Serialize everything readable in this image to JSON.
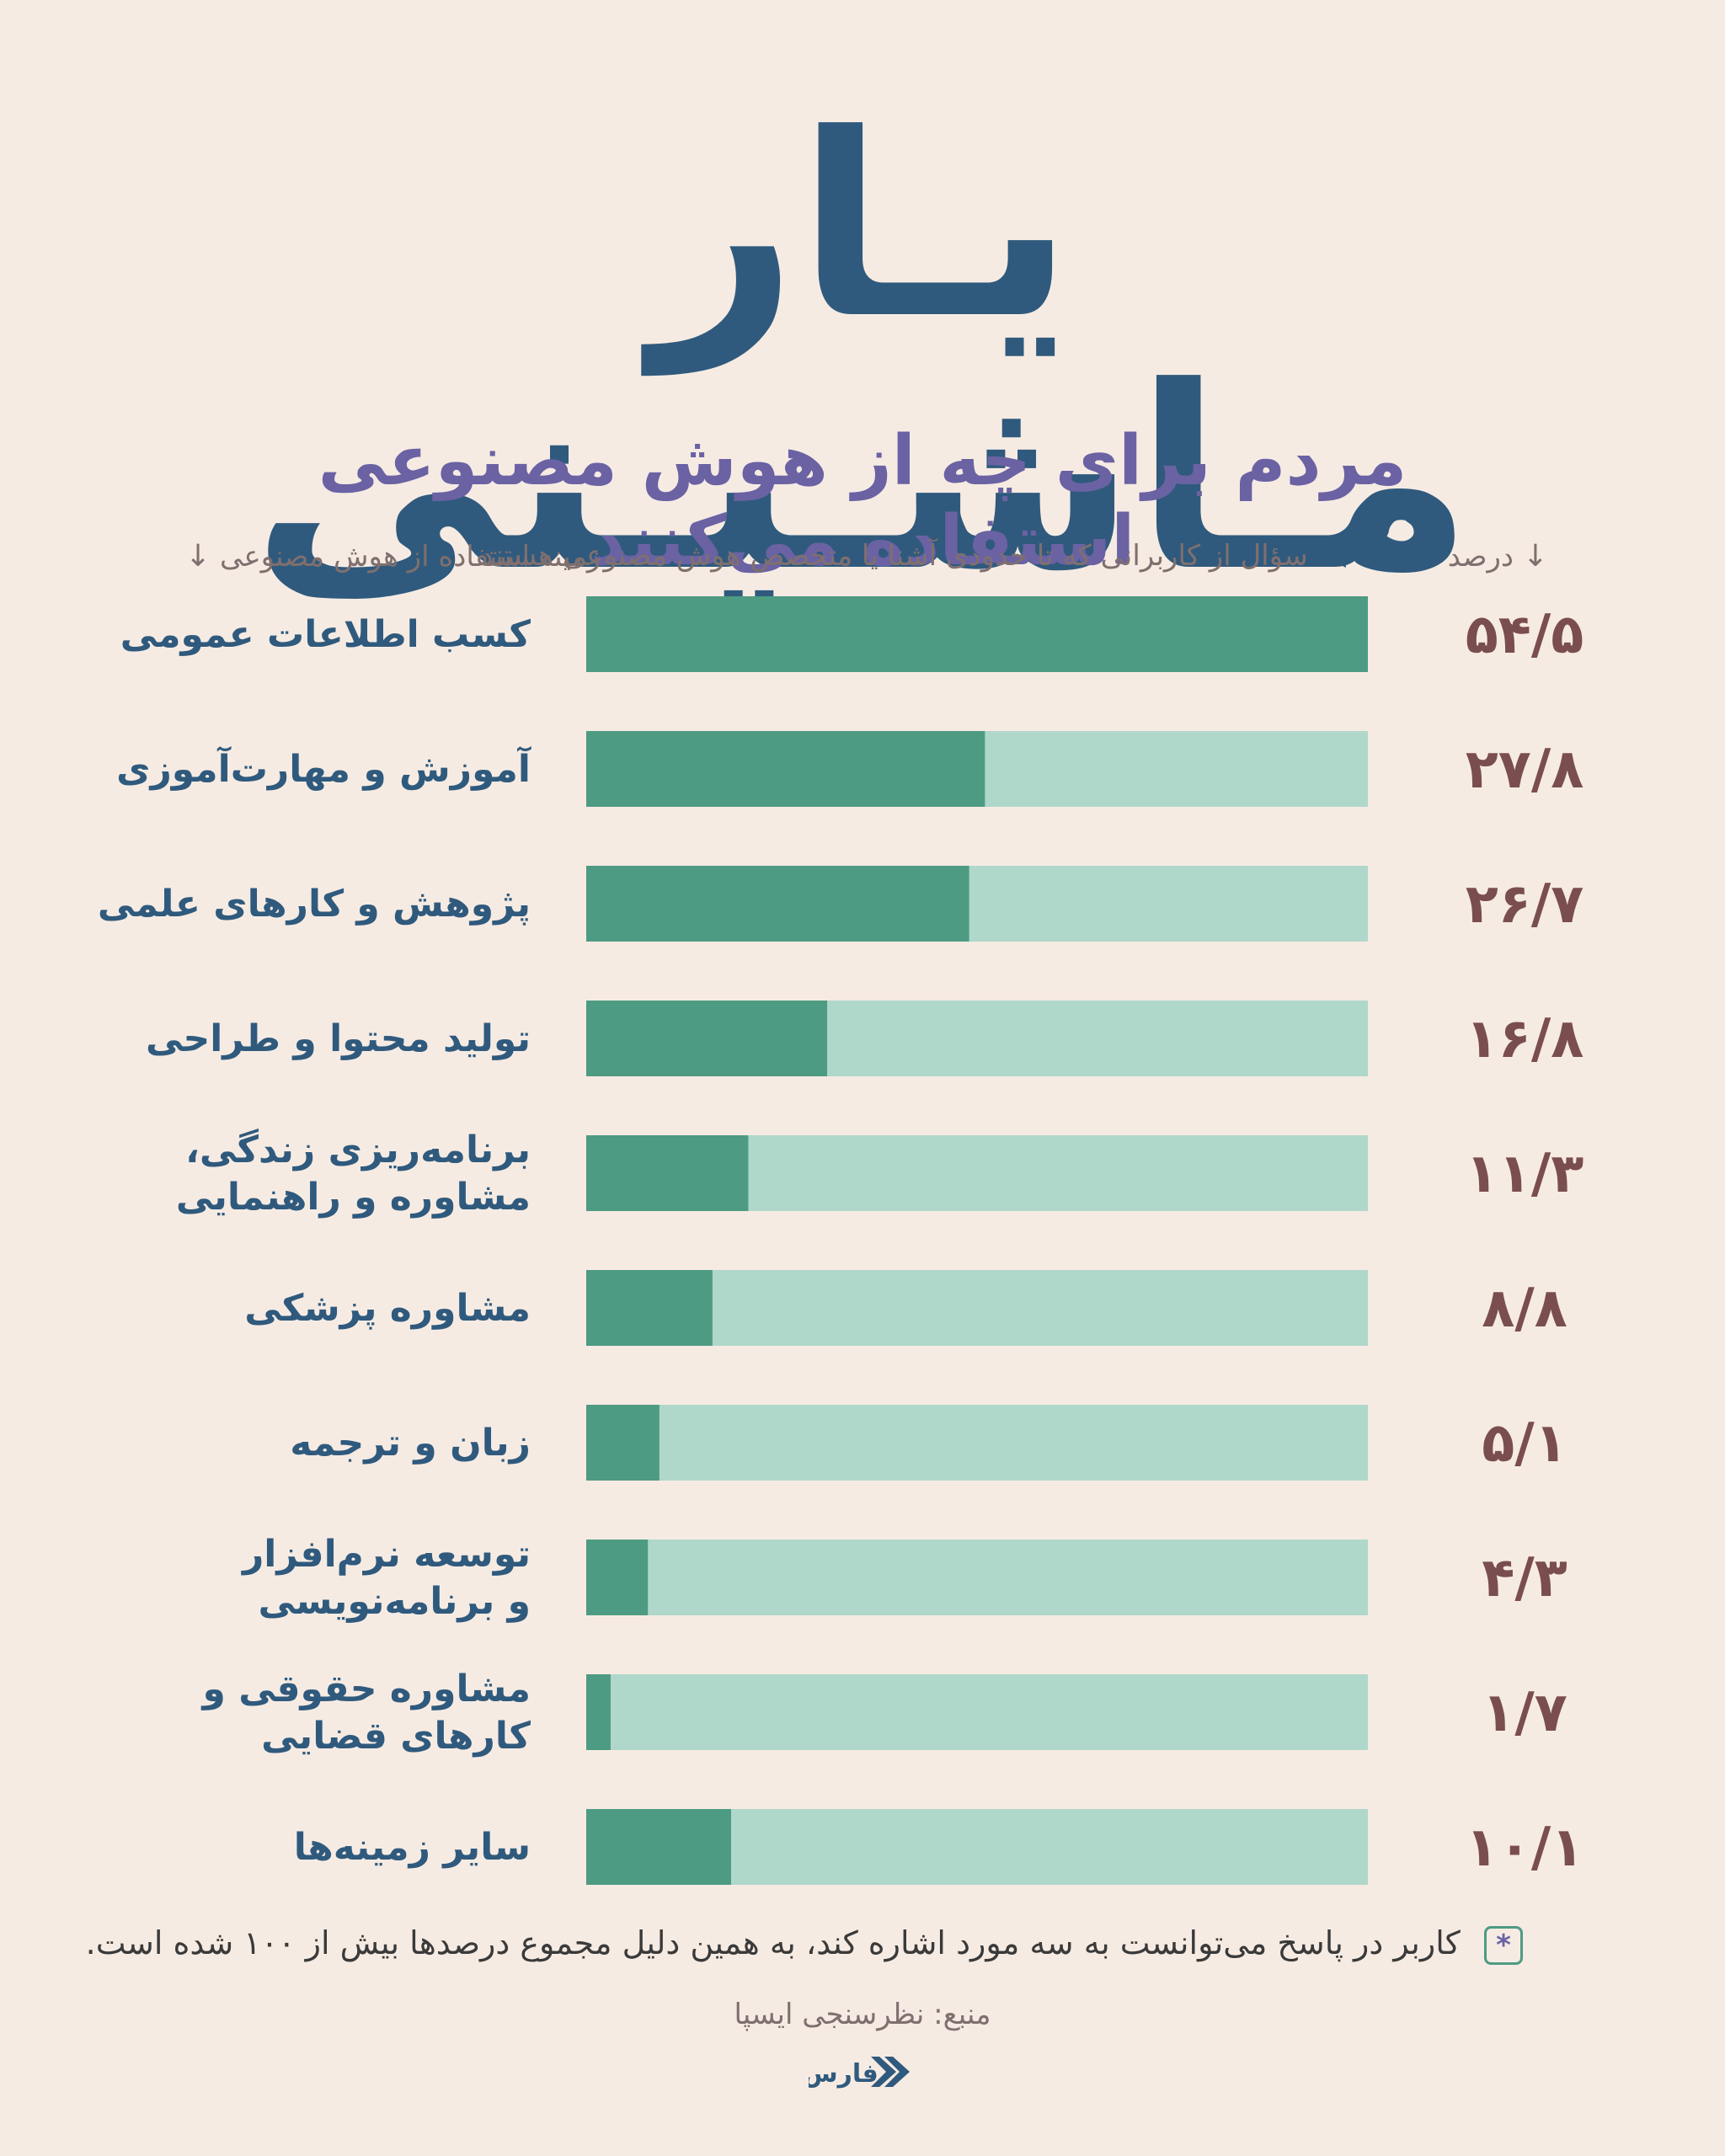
{
  "title": "یـار مـاشـیـنی",
  "subtitle": "مردم برای چه از هوش مصنوعی استفاده می‌کنند",
  "header": {
    "percent_label": "درصد",
    "question_label": "سؤال از کاربرانی که تا حدودی آشنا یا متخصص هوش مصنوعی هستند",
    "category_label": "زمینه استفاده از هوش مصنوعی"
  },
  "colors": {
    "bar_fill": "#4e9b83",
    "bar_track": "#afd8ca",
    "label": "#2f5a7d",
    "value": "#7a4e4e"
  },
  "chart_data": {
    "type": "bar",
    "orientation": "horizontal",
    "categories": [
      "کسب اطلاعات عمومی",
      "آموزش و مهارت‌آموزی",
      "پژوهش و کارهای علمی",
      "تولید محتوا و طراحی",
      "برنامه‌ریزی زندگی، مشاوره و راهنمایی",
      "مشاوره پزشکی",
      "زبان و ترجمه",
      "توسعه نرم‌افزار و برنامه‌نویسی",
      "مشاوره حقوقی و کارهای قضایی",
      "سایر زمینه‌ها"
    ],
    "category_lines": [
      [
        "کسب اطلاعات عمومی"
      ],
      [
        "آموزش و مهارت‌آموزی"
      ],
      [
        "پژوهش و کارهای علمی"
      ],
      [
        "تولید محتوا و طراحی"
      ],
      [
        "برنامه‌ریزی زندگی،",
        "مشاوره و راهنمایی"
      ],
      [
        "مشاوره پزشکی"
      ],
      [
        "زبان و ترجمه"
      ],
      [
        "توسعه نرم‌افزار",
        "و برنامه‌نویسی"
      ],
      [
        "مشاوره حقوقی و",
        "کارهای قضایی"
      ],
      [
        "سایر زمینه‌ها"
      ]
    ],
    "values": [
      54.5,
      27.8,
      26.7,
      16.8,
      11.3,
      8.8,
      5.1,
      4.3,
      1.7,
      10.1
    ],
    "value_labels": [
      "۵۴/۵",
      "۲۷/۸",
      "۲۶/۷",
      "۱۶/۸",
      "۱۱/۳",
      "۸/۸",
      "۵/۱",
      "۴/۳",
      "۱/۷",
      "۱۰/۱"
    ],
    "xlim": [
      0,
      54.5
    ]
  },
  "footnote": {
    "star": "*",
    "text": "کاربر در پاسخ می‌توانست به سه مورد اشاره کند، به همین دلیل مجموع درصدها بیش از ۱۰۰ شده است."
  },
  "source": "منبع: نظرسنجی ایسپا",
  "logo": {
    "text": "فارس",
    "icon": "fars-logo-icon"
  }
}
